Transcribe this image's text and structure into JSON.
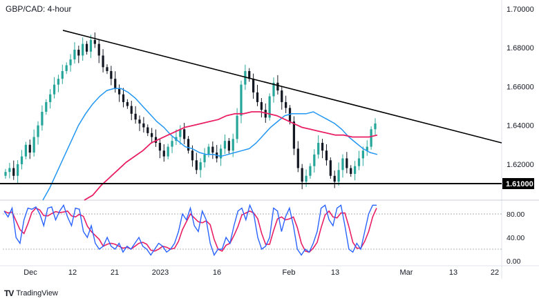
{
  "title": "GBP/CAD: 4-hour",
  "brand": {
    "logo": "TV",
    "name": "TradingView"
  },
  "colors": {
    "up": "#26a69a",
    "down": "#131722",
    "sma_fast": "#2196f3",
    "sma_slow": "#e91e63",
    "trendline": "#000000",
    "stoch_k": "#2962ff",
    "stoch_d": "#e91e63"
  },
  "chart_data": [
    {
      "type": "candlestick",
      "name": "price",
      "ylim": [
        1.6,
        1.705
      ],
      "y_ticks": [
        "1.70000",
        "1.68000",
        "1.66000",
        "1.64000",
        "1.62000",
        "1.61000"
      ],
      "x_ticks": [
        "Dec",
        "12",
        "21",
        "2023",
        "16",
        "Feb",
        "13",
        "Mar",
        "13",
        "22"
      ],
      "support": {
        "value": 1.61,
        "label": "1.61000"
      },
      "trendline": {
        "start": [
          "Dec 10",
          1.689
        ],
        "end": [
          "Mar 22",
          1.631
        ]
      },
      "closes": [
        1.616,
        1.618,
        1.614,
        1.62,
        1.624,
        1.63,
        1.626,
        1.634,
        1.64,
        1.647,
        1.652,
        1.656,
        1.661,
        1.664,
        1.668,
        1.671,
        1.674,
        1.679,
        1.676,
        1.682,
        1.678,
        1.684,
        1.682,
        1.676,
        1.67,
        1.668,
        1.664,
        1.659,
        1.656,
        1.652,
        1.65,
        1.646,
        1.643,
        1.641,
        1.639,
        1.636,
        1.634,
        1.631,
        1.627,
        1.624,
        1.629,
        1.632,
        1.634,
        1.638,
        1.633,
        1.627,
        1.622,
        1.617,
        1.621,
        1.625,
        1.629,
        1.626,
        1.623,
        1.628,
        1.632,
        1.627,
        1.633,
        1.645,
        1.661,
        1.668,
        1.664,
        1.657,
        1.652,
        1.648,
        1.644,
        1.655,
        1.662,
        1.658,
        1.652,
        1.649,
        1.642,
        1.628,
        1.618,
        1.611,
        1.614,
        1.619,
        1.625,
        1.631,
        1.627,
        1.622,
        1.614,
        1.611,
        1.617,
        1.623,
        1.618,
        1.615,
        1.619,
        1.623,
        1.627,
        1.629,
        1.638,
        1.641
      ],
      "sma_fast": [
        1.6,
        1.608,
        1.616,
        1.624,
        1.632,
        1.64,
        1.646,
        1.651,
        1.655,
        1.658,
        1.659,
        1.659,
        1.657,
        1.654,
        1.65,
        1.646,
        1.642,
        1.639,
        1.635,
        1.632,
        1.629,
        1.628,
        1.626,
        1.625,
        1.625,
        1.624,
        1.625,
        1.626,
        1.627,
        1.628,
        1.631,
        1.635,
        1.639,
        1.642,
        1.645,
        1.646,
        1.646,
        1.646,
        1.647,
        1.645,
        1.643,
        1.641,
        1.638,
        1.634,
        1.631,
        1.628,
        1.626,
        1.625
      ],
      "sma_slow": [
        1.6,
        1.604,
        1.609,
        1.613,
        1.617,
        1.621,
        1.624,
        1.627,
        1.631,
        1.633,
        1.635,
        1.637,
        1.639,
        1.64,
        1.641,
        1.642,
        1.643,
        1.645,
        1.646,
        1.646,
        1.647,
        1.647,
        1.646,
        1.645,
        1.643,
        1.641,
        1.639,
        1.638,
        1.637,
        1.636,
        1.635,
        1.635,
        1.634,
        1.634,
        1.634,
        1.635
      ]
    },
    {
      "type": "line",
      "name": "stochastic",
      "ylim": [
        0,
        100
      ],
      "y_ticks": [
        "80.00",
        "40.00",
        "0.00"
      ],
      "levels": [
        80,
        20
      ],
      "k": [
        85,
        75,
        90,
        40,
        30,
        70,
        90,
        88,
        92,
        80,
        60,
        90,
        92,
        70,
        85,
        95,
        75,
        60,
        90,
        88,
        50,
        40,
        60,
        30,
        20,
        25,
        40,
        25,
        20,
        30,
        15,
        25,
        20,
        30,
        40,
        25,
        20,
        10,
        20,
        30,
        25,
        15,
        20,
        30,
        50,
        80,
        70,
        90,
        60,
        50,
        85,
        70,
        30,
        10,
        20,
        20,
        40,
        30,
        60,
        85,
        90,
        70,
        95,
        80,
        40,
        20,
        25,
        40,
        90,
        85,
        50,
        75,
        90,
        60,
        20,
        10,
        20,
        15,
        30,
        50,
        90,
        95,
        70,
        60,
        90,
        95,
        60,
        20,
        15,
        30,
        20,
        50,
        80,
        95,
        95
      ]
    }
  ]
}
